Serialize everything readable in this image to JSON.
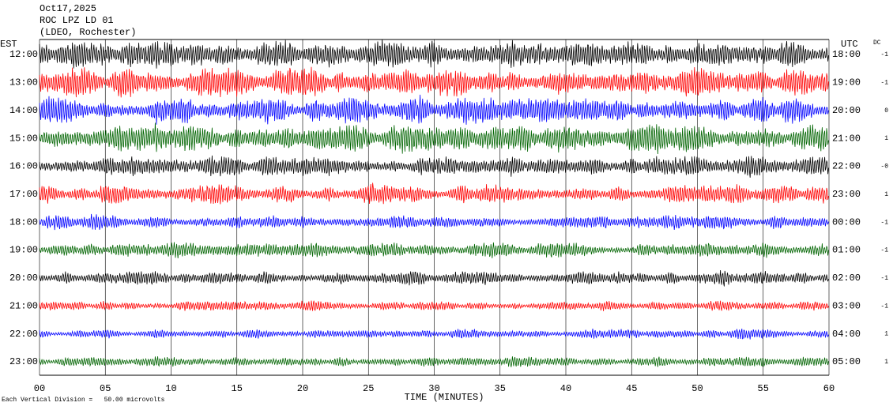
{
  "chart_data": {
    "type": "helicorder",
    "header": [
      "Oct17,2025",
      "ROC LPZ LD 01",
      "(LDEO, Rochester)"
    ],
    "left_axis_label": "EST",
    "right_axis_label": "UTC",
    "dc_label": "DC",
    "x_label": "TIME (MINUTES)",
    "footer": "Each Vertical Division =   50.00 microvolts",
    "xlim": [
      0,
      60
    ],
    "xticks": [
      {
        "value": 0,
        "label": "00"
      },
      {
        "value": 5,
        "label": "05"
      },
      10,
      15,
      20,
      25,
      30,
      35,
      40,
      45,
      50,
      55,
      60
    ],
    "grid": true,
    "traces": [
      {
        "est": "12:00",
        "utc": "18:00",
        "dc": "-1",
        "color": "#000000"
      },
      {
        "est": "13:00",
        "utc": "19:00",
        "dc": "-1",
        "color": "#ff0000"
      },
      {
        "est": "14:00",
        "utc": "20:00",
        "dc": "0",
        "color": "#0000ff"
      },
      {
        "est": "15:00",
        "utc": "21:00",
        "dc": "1",
        "color": "#006400"
      },
      {
        "est": "16:00",
        "utc": "22:00",
        "dc": "-0",
        "color": "#000000"
      },
      {
        "est": "17:00",
        "utc": "23:00",
        "dc": "1",
        "color": "#ff0000"
      },
      {
        "est": "18:00",
        "utc": "00:00",
        "dc": "-1",
        "color": "#0000ff"
      },
      {
        "est": "19:00",
        "utc": "01:00",
        "dc": "-1",
        "color": "#006400"
      },
      {
        "est": "20:00",
        "utc": "02:00",
        "dc": "-1",
        "color": "#000000"
      },
      {
        "est": "21:00",
        "utc": "03:00",
        "dc": "-1",
        "color": "#ff0000"
      },
      {
        "est": "22:00",
        "utc": "04:00",
        "dc": "1",
        "color": "#0000ff"
      },
      {
        "est": "23:00",
        "utc": "05:00",
        "dc": "1",
        "color": "#006400"
      }
    ]
  }
}
